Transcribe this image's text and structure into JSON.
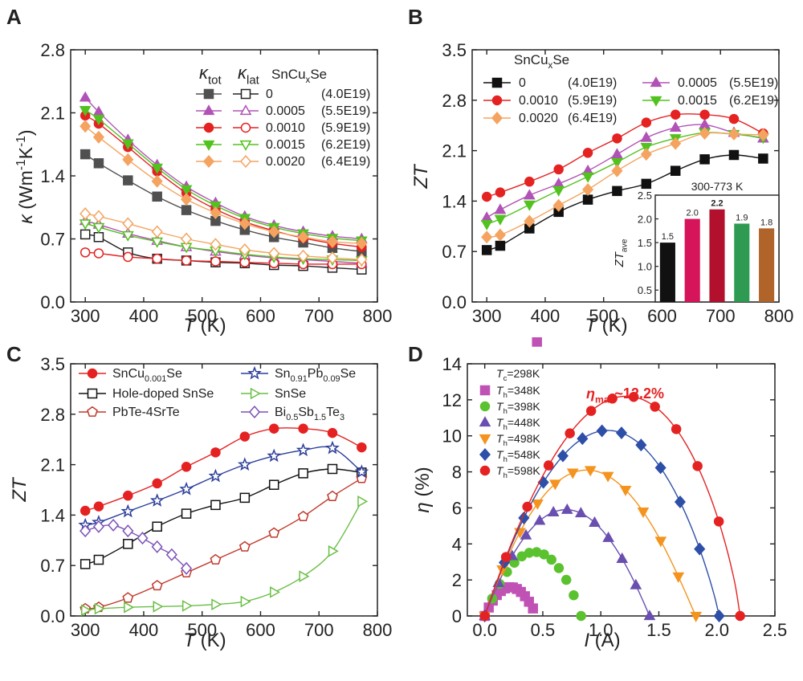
{
  "chart_data": [
    {
      "id": "A",
      "type": "line",
      "panel_label": "A",
      "xlim": [
        275,
        800
      ],
      "ylim": [
        0,
        2.8
      ],
      "xticks": [
        300,
        400,
        500,
        600,
        700,
        800
      ],
      "yticks": [
        0.0,
        0.7,
        1.4,
        2.1,
        2.8
      ],
      "xlabel_var": "T",
      "xlabel_unit": " (K)",
      "ylabel_var": "κ",
      "ylabel_unit_a": " (Wm",
      "ylabel_unit_sup1": "-1",
      "ylabel_unit_b": "K",
      "ylabel_unit_sup2": "-1",
      "ylabel_unit_c": ")",
      "legend_head": {
        "tot": "κ",
        "tot_sub": "tot",
        "lat": "κ",
        "lat_sub": "lat",
        "compound_a": "SnCu",
        "compound_sub": "x",
        "compound_b": "Se"
      },
      "x": [
        300,
        323,
        373,
        423,
        473,
        523,
        573,
        623,
        673,
        723,
        773
      ],
      "series": [
        {
          "name": "0",
          "carrier": "(4.0E19)",
          "color": "#505050",
          "kind": "tot",
          "marker": "square",
          "values": [
            1.64,
            1.54,
            1.35,
            1.17,
            1.02,
            0.9,
            0.8,
            0.72,
            0.66,
            0.6,
            0.56
          ]
        },
        {
          "name": "0.0005",
          "carrier": "(5.5E19)",
          "color": "#b153b6",
          "kind": "tot",
          "marker": "triangle",
          "values": [
            2.27,
            2.11,
            1.8,
            1.52,
            1.28,
            1.1,
            0.95,
            0.85,
            0.78,
            0.73,
            0.7
          ]
        },
        {
          "name": "0.0010",
          "carrier": "(5.9E19)",
          "color": "#e52222",
          "kind": "tot",
          "marker": "circle",
          "values": [
            2.07,
            1.98,
            1.72,
            1.45,
            1.21,
            1.03,
            0.89,
            0.79,
            0.71,
            0.65,
            0.61
          ]
        },
        {
          "name": "0.0015",
          "carrier": "(6.2E19)",
          "color": "#52c21f",
          "kind": "tot",
          "marker": "triangle-down",
          "values": [
            2.13,
            2.03,
            1.76,
            1.49,
            1.25,
            1.07,
            0.93,
            0.83,
            0.76,
            0.71,
            0.68
          ]
        },
        {
          "name": "0.0020",
          "carrier": "(6.4E19)",
          "color": "#f4a460",
          "kind": "tot",
          "marker": "diamond",
          "values": [
            1.95,
            1.83,
            1.58,
            1.34,
            1.14,
            0.99,
            0.87,
            0.78,
            0.72,
            0.67,
            0.65
          ]
        },
        {
          "name": "0",
          "carrier": "(4.0E19)",
          "color": "#505050",
          "kind": "lat",
          "marker": "square",
          "values": [
            0.75,
            0.72,
            0.55,
            0.48,
            0.46,
            0.44,
            0.43,
            0.41,
            0.4,
            0.38,
            0.36
          ]
        },
        {
          "name": "0.0005",
          "carrier": "(5.5E19)",
          "color": "#b153b6",
          "kind": "lat",
          "marker": "triangle",
          "values": [
            0.9,
            0.86,
            0.76,
            0.68,
            0.61,
            0.56,
            0.52,
            0.49,
            0.47,
            0.45,
            0.43
          ]
        },
        {
          "name": "0.0010",
          "carrier": "(5.9E19)",
          "color": "#e52222",
          "kind": "lat",
          "marker": "circle",
          "values": [
            0.55,
            0.54,
            0.5,
            0.48,
            0.46,
            0.45,
            0.44,
            0.43,
            0.42,
            0.42,
            0.42
          ]
        },
        {
          "name": "0.0015",
          "carrier": "(6.2E19)",
          "color": "#52c21f",
          "kind": "lat",
          "marker": "triangle-down",
          "values": [
            0.87,
            0.83,
            0.74,
            0.67,
            0.61,
            0.57,
            0.53,
            0.5,
            0.48,
            0.47,
            0.46
          ]
        },
        {
          "name": "0.0020",
          "carrier": "(6.4E19)",
          "color": "#f4a460",
          "kind": "lat",
          "marker": "diamond",
          "values": [
            0.98,
            0.95,
            0.87,
            0.78,
            0.7,
            0.64,
            0.58,
            0.54,
            0.51,
            0.49,
            0.47
          ]
        }
      ]
    },
    {
      "id": "B",
      "type": "line",
      "panel_label": "B",
      "xlim": [
        275,
        800
      ],
      "ylim": [
        0,
        3.5
      ],
      "xticks": [
        300,
        400,
        500,
        600,
        700,
        800
      ],
      "yticks": [
        0.0,
        0.7,
        1.4,
        2.1,
        2.8,
        3.5
      ],
      "xlabel_var": "T",
      "xlabel_unit": " (K)",
      "ylabel": "ZT",
      "legend_title_a": "SnCu",
      "legend_title_sub": "x",
      "legend_title_b": "Se",
      "x": [
        300,
        323,
        373,
        423,
        473,
        523,
        573,
        623,
        673,
        723,
        773
      ],
      "series": [
        {
          "name": "0",
          "carrier": "(4.0E19)",
          "color": "#111111",
          "marker": "square",
          "values": [
            0.72,
            0.78,
            1.02,
            1.25,
            1.42,
            1.54,
            1.64,
            1.82,
            1.98,
            2.04,
            1.99
          ]
        },
        {
          "name": "0.0005",
          "carrier": "(5.5E19)",
          "color": "#b153b6",
          "marker": "triangle",
          "values": [
            1.17,
            1.28,
            1.48,
            1.64,
            1.82,
            2.05,
            2.28,
            2.42,
            2.46,
            2.35,
            2.27
          ]
        },
        {
          "name": "0.0010",
          "carrier": "(5.9E19)",
          "color": "#e52222",
          "marker": "circle",
          "values": [
            1.46,
            1.52,
            1.67,
            1.84,
            2.07,
            2.27,
            2.49,
            2.6,
            2.6,
            2.54,
            2.34
          ]
        },
        {
          "name": "0.0015",
          "carrier": "(6.2E19)",
          "color": "#52c21f",
          "marker": "triangle-down",
          "values": [
            1.08,
            1.15,
            1.35,
            1.55,
            1.74,
            1.94,
            2.15,
            2.27,
            2.35,
            2.33,
            2.28
          ]
        },
        {
          "name": "0.0020",
          "carrier": "(6.4E19)",
          "color": "#f4a460",
          "marker": "diamond",
          "values": [
            0.9,
            0.93,
            1.12,
            1.34,
            1.56,
            1.82,
            2.05,
            2.2,
            2.34,
            2.33,
            2.32
          ]
        }
      ],
      "inset": {
        "type": "bar",
        "title": "300-773 K",
        "ylabel_a": "ZT",
        "ylabel_sub": "ave",
        "ylim": [
          0,
          2.5
        ],
        "yticks": [
          0.5,
          1.0,
          1.5,
          2.0,
          2.5
        ],
        "labels": [
          "1.5",
          "2.0",
          "2.2",
          "1.9",
          "1.8"
        ],
        "values": [
          1.5,
          2.0,
          2.2,
          1.9,
          1.8
        ],
        "colors": [
          "#111111",
          "#d6145a",
          "#b2102c",
          "#2e9a52",
          "#b0642a"
        ]
      }
    },
    {
      "id": "C",
      "type": "line",
      "panel_label": "C",
      "xlim": [
        275,
        800
      ],
      "ylim": [
        0,
        3.5
      ],
      "xticks": [
        300,
        400,
        500,
        600,
        700,
        800
      ],
      "yticks": [
        0.0,
        0.7,
        1.4,
        2.1,
        2.8,
        3.5
      ],
      "xlabel_var": "T",
      "xlabel_unit": " (K)",
      "ylabel": "ZT",
      "series": [
        {
          "name_a": "SnCu",
          "name_sub": "0.001",
          "name_b": "Se",
          "color": "#e52222",
          "marker": "circle",
          "filled": true,
          "x": [
            300,
            323,
            373,
            423,
            473,
            523,
            573,
            623,
            673,
            723,
            773
          ],
          "values": [
            1.46,
            1.52,
            1.67,
            1.84,
            2.07,
            2.27,
            2.49,
            2.6,
            2.6,
            2.54,
            2.34
          ]
        },
        {
          "name_a": "Hole-doped SnSe",
          "color": "#111111",
          "marker": "square",
          "filled": false,
          "x": [
            300,
            323,
            373,
            423,
            473,
            523,
            573,
            623,
            673,
            723,
            773
          ],
          "values": [
            0.72,
            0.78,
            1.0,
            1.24,
            1.42,
            1.54,
            1.64,
            1.82,
            1.98,
            2.04,
            1.99
          ]
        },
        {
          "name_a": "PbTe-4SrTe",
          "color": "#c0392b",
          "marker": "pentagon",
          "filled": false,
          "x": [
            300,
            323,
            373,
            423,
            473,
            523,
            573,
            623,
            673,
            723,
            773
          ],
          "values": [
            0.1,
            0.12,
            0.25,
            0.42,
            0.6,
            0.78,
            0.96,
            1.15,
            1.38,
            1.66,
            1.91
          ]
        },
        {
          "name_a": "Sn",
          "name_sub": "0.91",
          "name_b": "Pb",
          "name_sub2": "0.09",
          "name_c": "Se",
          "color": "#2c3e9a",
          "marker": "star",
          "filled": false,
          "x": [
            300,
            323,
            373,
            423,
            473,
            523,
            573,
            623,
            673,
            723,
            773
          ],
          "values": [
            1.26,
            1.3,
            1.45,
            1.6,
            1.76,
            1.94,
            2.1,
            2.22,
            2.3,
            2.33,
            2.0
          ]
        },
        {
          "name_a": "SnSe",
          "color": "#6abf45",
          "marker": "triangle-right",
          "filled": false,
          "x": [
            300,
            323,
            373,
            423,
            473,
            523,
            573,
            623,
            673,
            723,
            773
          ],
          "values": [
            0.08,
            0.1,
            0.12,
            0.13,
            0.14,
            0.16,
            0.2,
            0.33,
            0.55,
            0.9,
            1.59
          ]
        },
        {
          "name_a": "Bi",
          "name_sub": "0.5",
          "name_b": "Sb",
          "name_sub2": "1.5",
          "name_c": "Te",
          "name_sub3": "3",
          "color": "#7b52b6",
          "marker": "diamond",
          "filled": false,
          "x": [
            300,
            323,
            348,
            373,
            398,
            423,
            448,
            473
          ],
          "values": [
            1.18,
            1.24,
            1.26,
            1.18,
            1.08,
            0.96,
            0.85,
            0.66
          ]
        }
      ]
    },
    {
      "id": "D",
      "type": "scatter",
      "panel_label": "D",
      "xlim": [
        -0.15,
        2.5
      ],
      "ylim": [
        0,
        14
      ],
      "xticks": [
        0.0,
        0.5,
        1.0,
        1.5,
        2.0,
        2.5
      ],
      "yticks": [
        0,
        2,
        4,
        6,
        8,
        10,
        12,
        14
      ],
      "xlabel_var": "I",
      "xlabel_unit": " (A)",
      "ylabel_var": "η",
      "ylabel_unit": " (%)",
      "annotation_a": "η",
      "annotation_sub": "max",
      "annotation_b": "~12.2%",
      "tc_label_a": "T",
      "tc_label_sub": "c",
      "tc_label_b": "=298K",
      "series": [
        {
          "name": "=348K",
          "color": "#c052b6",
          "marker": "square",
          "imax": 0.45,
          "peak": 1.6,
          "ipeak": 0.22,
          "curve": false
        },
        {
          "name": "=398K",
          "color": "#5bc22f",
          "marker": "circle",
          "imax": 0.83,
          "peak": 3.55,
          "ipeak": 0.43,
          "curve": false
        },
        {
          "name": "=448K",
          "color": "#6a4fb0",
          "marker": "triangle",
          "imax": 1.42,
          "peak": 5.9,
          "ipeak": 0.7,
          "curve": true
        },
        {
          "name": "=498K",
          "color": "#f4931e",
          "marker": "triangle-down",
          "imax": 1.82,
          "peak": 8.1,
          "ipeak": 0.88,
          "curve": true
        },
        {
          "name": "=548K",
          "color": "#2e4fa8",
          "marker": "diamond",
          "imax": 2.02,
          "peak": 10.3,
          "ipeak": 1.06,
          "curve": true
        },
        {
          "name": "=598K",
          "color": "#e52222",
          "marker": "circle",
          "imax": 2.2,
          "peak": 12.2,
          "ipeak": 1.22,
          "curve": true
        }
      ],
      "th_prefix": "T",
      "th_sub": "h"
    }
  ]
}
